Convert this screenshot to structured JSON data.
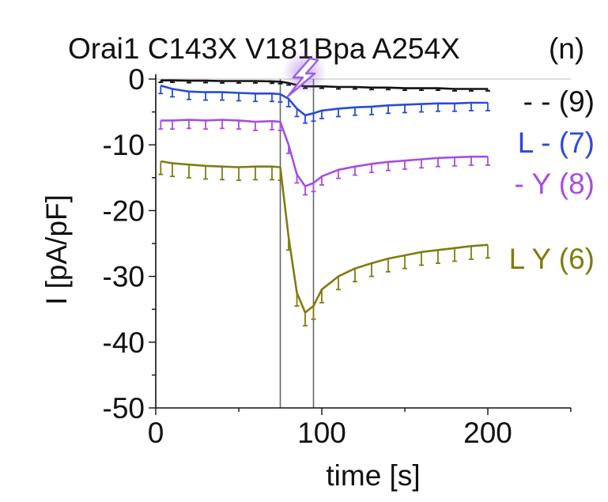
{
  "chart_data": {
    "type": "line",
    "title": "Orai1 C143X V181Bpa A254X",
    "legend_header": "(n)",
    "xlabel": "time [s]",
    "ylabel": "I [pA/pF]",
    "xlim": [
      0,
      250
    ],
    "ylim": [
      -50,
      0
    ],
    "x_ticks": [
      0,
      100,
      200
    ],
    "x_tick_labels": [
      "0",
      "100",
      "200"
    ],
    "y_ticks": [
      0,
      -10,
      -20,
      -30,
      -40,
      -50
    ],
    "y_tick_labels": [
      "0",
      "-10",
      "-20",
      "-30",
      "-40",
      "-50"
    ],
    "vertical_markers": [
      75,
      95
    ],
    "uv_marker_color": "#9b5de5",
    "legend_placement": "right",
    "grid": false,
    "series": [
      {
        "name": "- - (9)",
        "color": "#111111",
        "points": [
          [
            3,
            -0.2
          ],
          [
            10,
            -0.2
          ],
          [
            20,
            -0.25
          ],
          [
            30,
            -0.25
          ],
          [
            40,
            -0.3
          ],
          [
            50,
            -0.3
          ],
          [
            60,
            -0.3
          ],
          [
            70,
            -0.35
          ],
          [
            75,
            -0.4
          ],
          [
            80,
            -0.6
          ],
          [
            85,
            -0.9
          ],
          [
            90,
            -1.1
          ],
          [
            100,
            -1.1
          ],
          [
            110,
            -1.2
          ],
          [
            120,
            -1.2
          ],
          [
            130,
            -1.3
          ],
          [
            140,
            -1.3
          ],
          [
            150,
            -1.4
          ],
          [
            160,
            -1.4
          ],
          [
            170,
            -1.4
          ],
          [
            180,
            -1.5
          ],
          [
            190,
            -1.5
          ],
          [
            200,
            -1.5
          ]
        ],
        "error": 0.3
      },
      {
        "name": "L - (7)",
        "color": "#2b4bd4",
        "points": [
          [
            3,
            -1.0
          ],
          [
            10,
            -1.5
          ],
          [
            20,
            -1.9
          ],
          [
            30,
            -2.0
          ],
          [
            40,
            -2.0
          ],
          [
            50,
            -2.1
          ],
          [
            60,
            -2.2
          ],
          [
            70,
            -2.2
          ],
          [
            75,
            -2.3
          ],
          [
            80,
            -3.0
          ],
          [
            85,
            -4.5
          ],
          [
            90,
            -5.5
          ],
          [
            95,
            -5.2
          ],
          [
            100,
            -4.8
          ],
          [
            110,
            -4.5
          ],
          [
            120,
            -4.3
          ],
          [
            130,
            -4.2
          ],
          [
            140,
            -4.0
          ],
          [
            150,
            -3.9
          ],
          [
            160,
            -3.8
          ],
          [
            170,
            -3.7
          ],
          [
            180,
            -3.7
          ],
          [
            190,
            -3.6
          ],
          [
            200,
            -3.6
          ]
        ],
        "error": 1.2
      },
      {
        "name": "- Y (8)",
        "color": "#a54fe0",
        "points": [
          [
            3,
            -6.3
          ],
          [
            10,
            -6.3
          ],
          [
            20,
            -6.2
          ],
          [
            30,
            -6.3
          ],
          [
            40,
            -6.2
          ],
          [
            50,
            -6.3
          ],
          [
            60,
            -6.5
          ],
          [
            70,
            -6.4
          ],
          [
            75,
            -6.5
          ],
          [
            80,
            -10.0
          ],
          [
            85,
            -14.5
          ],
          [
            90,
            -16.3
          ],
          [
            95,
            -15.8
          ],
          [
            100,
            -14.8
          ],
          [
            110,
            -13.8
          ],
          [
            120,
            -13.3
          ],
          [
            130,
            -12.9
          ],
          [
            140,
            -12.6
          ],
          [
            150,
            -12.4
          ],
          [
            160,
            -12.2
          ],
          [
            170,
            -12.0
          ],
          [
            180,
            -11.9
          ],
          [
            190,
            -11.8
          ],
          [
            200,
            -11.8
          ]
        ],
        "error": 1.3
      },
      {
        "name": "L Y (6)",
        "color": "#807c10",
        "points": [
          [
            3,
            -12.5
          ],
          [
            10,
            -12.8
          ],
          [
            20,
            -13.0
          ],
          [
            30,
            -13.2
          ],
          [
            40,
            -13.3
          ],
          [
            50,
            -13.4
          ],
          [
            60,
            -13.3
          ],
          [
            70,
            -13.3
          ],
          [
            75,
            -13.4
          ],
          [
            80,
            -24.0
          ],
          [
            85,
            -32.5
          ],
          [
            90,
            -35.5
          ],
          [
            95,
            -34.5
          ],
          [
            100,
            -32.0
          ],
          [
            110,
            -30.0
          ],
          [
            120,
            -28.8
          ],
          [
            130,
            -28.0
          ],
          [
            140,
            -27.3
          ],
          [
            150,
            -26.8
          ],
          [
            160,
            -26.3
          ],
          [
            170,
            -26.0
          ],
          [
            180,
            -25.7
          ],
          [
            190,
            -25.4
          ],
          [
            200,
            -25.2
          ]
        ],
        "error": 2.0
      }
    ]
  }
}
